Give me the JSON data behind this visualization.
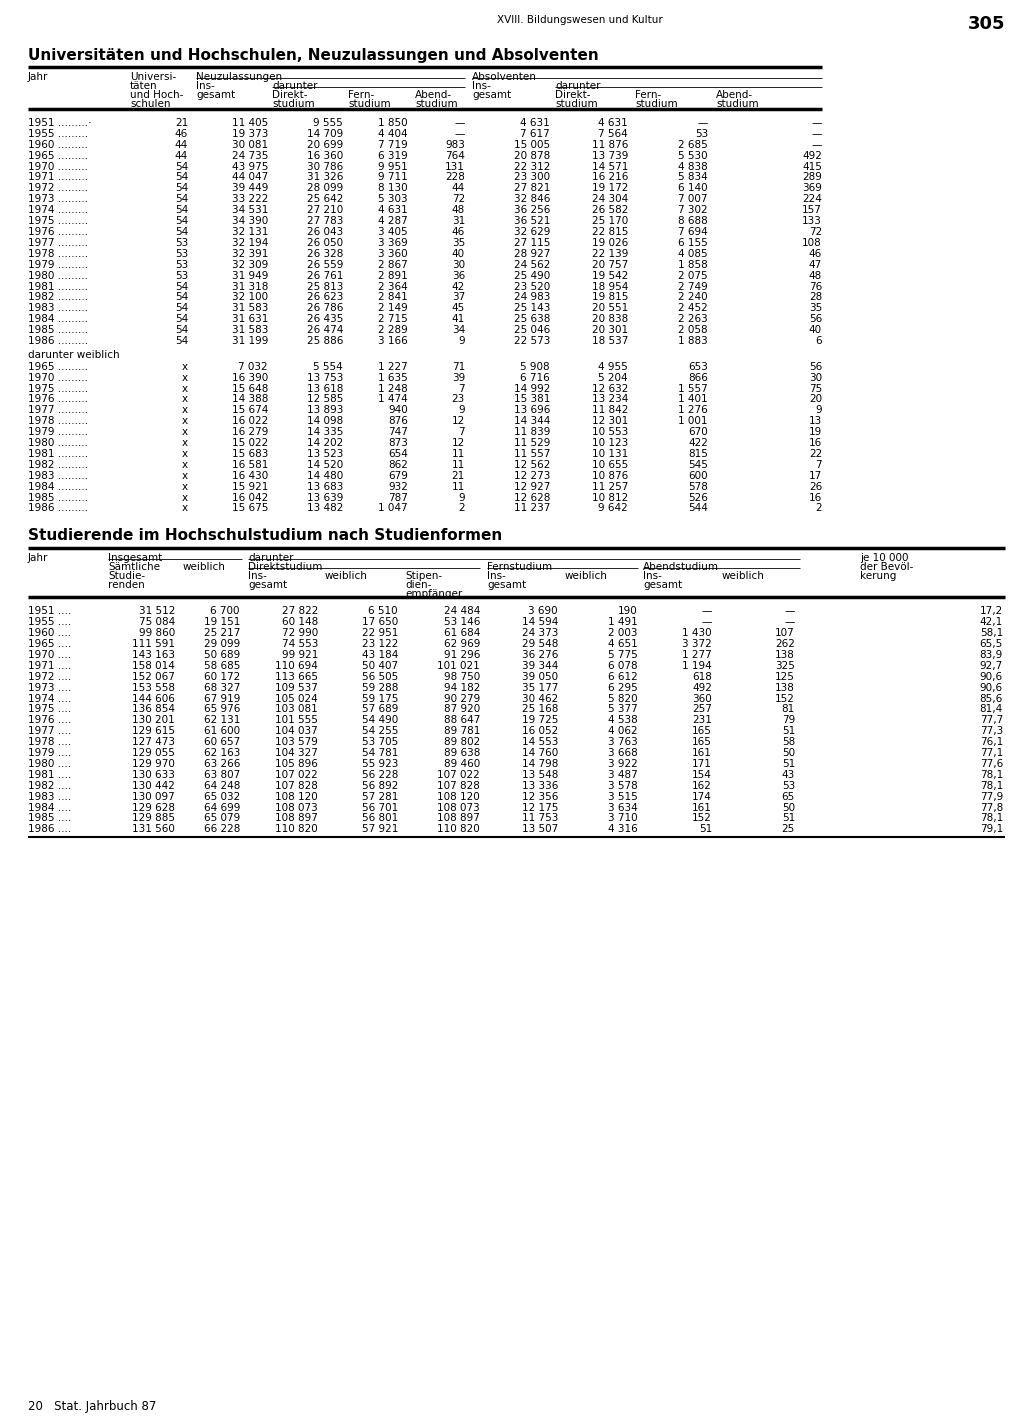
{
  "page_header": "XVIII. Bildungswesen und Kultur",
  "page_number": "305",
  "footer": "20   Stat. Jahrbuch 87",
  "table1_title": "Universitäten und Hochschulen, Neuzulassungen und Absolventen",
  "table1_data": [
    [
      "1951 .........·",
      "21",
      "11 405",
      "9 555",
      "1 850",
      "—",
      "4 631",
      "4 631",
      "—",
      "—"
    ],
    [
      "1955 .........",
      "46",
      "19 373",
      "14 709",
      "4 404",
      "—",
      "7 617",
      "7 564",
      "53",
      "—"
    ],
    [
      "1960 .........",
      "44",
      "30 081",
      "20 699",
      "7 719",
      "983",
      "15 005",
      "11 876",
      "2 685",
      "—"
    ],
    [
      "1965 .........",
      "44",
      "24 735",
      "16 360",
      "6 319",
      "764",
      "20 878",
      "13 739",
      "5 530",
      "492"
    ],
    [
      "1970 .........",
      "54",
      "43 975",
      "30 786",
      "9 951",
      "131",
      "22 312",
      "14 571",
      "4 838",
      "415"
    ],
    [
      "1971 .........",
      "54",
      "44 047",
      "31 326",
      "9 711",
      "228",
      "23 300",
      "16 216",
      "5 834",
      "289"
    ],
    [
      "1972 .........",
      "54",
      "39 449",
      "28 099",
      "8 130",
      "44",
      "27 821",
      "19 172",
      "6 140",
      "369"
    ],
    [
      "1973 .........",
      "54",
      "33 222",
      "25 642",
      "5 303",
      "72",
      "32 846",
      "24 304",
      "7 007",
      "224"
    ],
    [
      "1974 .........",
      "54",
      "34 531",
      "27 210",
      "4 631",
      "48",
      "36 256",
      "26 582",
      "7 302",
      "157"
    ],
    [
      "1975 .........",
      "54",
      "34 390",
      "27 783",
      "4 287",
      "31",
      "36 521",
      "25 170",
      "8 688",
      "133"
    ],
    [
      "1976 .........",
      "54",
      "32 131",
      "26 043",
      "3 405",
      "46",
      "32 629",
      "22 815",
      "7 694",
      "72"
    ],
    [
      "1977 .........",
      "53",
      "32 194",
      "26 050",
      "3 369",
      "35",
      "27 115",
      "19 026",
      "6 155",
      "108"
    ],
    [
      "1978 .........",
      "53",
      "32 391",
      "26 328",
      "3 360",
      "40",
      "28 927",
      "22 139",
      "4 085",
      "46"
    ],
    [
      "1979 .........",
      "53",
      "32 309",
      "26 559",
      "2 867",
      "30",
      "24 562",
      "20 757",
      "1 858",
      "47"
    ],
    [
      "1980 .........",
      "53",
      "31 949",
      "26 761",
      "2 891",
      "36",
      "25 490",
      "19 542",
      "2 075",
      "48"
    ],
    [
      "1981 .........",
      "54",
      "31 318",
      "25 813",
      "2 364",
      "42",
      "23 520",
      "18 954",
      "2 749",
      "76"
    ],
    [
      "1982 .........",
      "54",
      "32 100",
      "26 623",
      "2 841",
      "37",
      "24 983",
      "19 815",
      "2 240",
      "28"
    ],
    [
      "1983 .........",
      "54",
      "31 583",
      "26 786",
      "2 149",
      "45",
      "25 143",
      "20 551",
      "2 452",
      "35"
    ],
    [
      "1984 .........",
      "54",
      "31 631",
      "26 435",
      "2 715",
      "41",
      "25 638",
      "20 838",
      "2 263",
      "56"
    ],
    [
      "1985 .........",
      "54",
      "31 583",
      "26 474",
      "2 289",
      "34",
      "25 046",
      "20 301",
      "2 058",
      "40"
    ],
    [
      "1986 .........",
      "54",
      "31 199",
      "25 886",
      "3 166",
      "9",
      "22 573",
      "18 537",
      "1 883",
      "6"
    ]
  ],
  "table1_section2_label": "darunter weiblich",
  "table1_data2": [
    [
      "1965 .........",
      "x",
      "7 032",
      "5 554",
      "1 227",
      "71",
      "5 908",
      "4 955",
      "653",
      "56"
    ],
    [
      "1970 .........",
      "x",
      "16 390",
      "13 753",
      "1 635",
      "39",
      "6 716",
      "5 204",
      "866",
      "30"
    ],
    [
      "1975 .........",
      "x",
      "15 648",
      "13 618",
      "1 248",
      "7",
      "14 992",
      "12 632",
      "1 557",
      "75"
    ],
    [
      "1976 .........",
      "x",
      "14 388",
      "12 585",
      "1 474",
      "23",
      "15 381",
      "13 234",
      "1 401",
      "20"
    ],
    [
      "1977 .........",
      "x",
      "15 674",
      "13 893",
      "940",
      "9",
      "13 696",
      "11 842",
      "1 276",
      "9"
    ],
    [
      "1978 .........",
      "x",
      "16 022",
      "14 098",
      "876",
      "12",
      "14 344",
      "12 301",
      "1 001",
      "13"
    ],
    [
      "1979 .........",
      "x",
      "16 279",
      "14 335",
      "747",
      "7",
      "11 839",
      "10 553",
      "670",
      "19"
    ],
    [
      "1980 .........",
      "x",
      "15 022",
      "14 202",
      "873",
      "12",
      "11 529",
      "10 123",
      "422",
      "16"
    ],
    [
      "1981 .........",
      "x",
      "15 683",
      "13 523",
      "654",
      "11",
      "11 557",
      "10 131",
      "815",
      "22"
    ],
    [
      "1982 .........",
      "x",
      "16 581",
      "14 520",
      "862",
      "11",
      "12 562",
      "10 655",
      "545",
      "7"
    ],
    [
      "1983 .........",
      "x",
      "16 430",
      "14 480",
      "679",
      "21",
      "12 273",
      "10 876",
      "600",
      "17"
    ],
    [
      "1984 .........",
      "x",
      "15 921",
      "13 683",
      "932",
      "11",
      "12 927",
      "11 257",
      "578",
      "26"
    ],
    [
      "1985 .........",
      "x",
      "16 042",
      "13 639",
      "787",
      "9",
      "12 628",
      "10 812",
      "526",
      "16"
    ],
    [
      "1986 .........",
      "x",
      "15 675",
      "13 482",
      "1 047",
      "2",
      "11 237",
      "9 642",
      "544",
      "2"
    ]
  ],
  "table2_title": "Studierende im Hochschulstudium nach Studienformen",
  "table2_data": [
    [
      "1951 ....",
      "31 512",
      "6 700",
      "27 822",
      "6 510",
      "24 484",
      "3 690",
      "190",
      "—",
      "—",
      "17,2"
    ],
    [
      "1955 ....",
      "75 084",
      "19 151",
      "60 148",
      "17 650",
      "53 146",
      "14 594",
      "1 491",
      "—",
      "—",
      "42,1"
    ],
    [
      "1960 ....",
      "99 860",
      "25 217",
      "72 990",
      "22 951",
      "61 684",
      "24 373",
      "2 003",
      "1 430",
      "107",
      "58,1"
    ],
    [
      "1965 ....",
      "111 591",
      "29 099",
      "74 553",
      "23 122",
      "62 969",
      "29 548",
      "4 651",
      "3 372",
      "262",
      "65,5"
    ],
    [
      "1970 ....",
      "143 163",
      "50 689",
      "99 921",
      "43 184",
      "91 296",
      "36 276",
      "5 775",
      "1 277",
      "138",
      "83,9"
    ],
    [
      "1971 ....",
      "158 014",
      "58 685",
      "110 694",
      "50 407",
      "101 021",
      "39 344",
      "6 078",
      "1 194",
      "325",
      "92,7"
    ],
    [
      "1972 ....",
      "152 067",
      "60 172",
      "113 665",
      "56 505",
      "98 750",
      "39 050",
      "6 612",
      "618",
      "125",
      "90,6"
    ],
    [
      "1973 ....",
      "153 558",
      "68 327",
      "109 537",
      "59 288",
      "94 182",
      "35 177",
      "6 295",
      "492",
      "138",
      "90,6"
    ],
    [
      "1974 ....",
      "144 606",
      "67 919",
      "105 024",
      "59 175",
      "90 279",
      "30 462",
      "5 820",
      "360",
      "152",
      "85,6"
    ],
    [
      "1975 ....",
      "136 854",
      "65 976",
      "103 081",
      "57 689",
      "87 920",
      "25 168",
      "5 377",
      "257",
      "81",
      "81,4"
    ],
    [
      "1976 ....",
      "130 201",
      "62 131",
      "101 555",
      "54 490",
      "88 647",
      "19 725",
      "4 538",
      "231",
      "79",
      "77,7"
    ],
    [
      "1977 ....",
      "129 615",
      "61 600",
      "104 037",
      "54 255",
      "89 781",
      "16 052",
      "4 062",
      "165",
      "51",
      "77,3"
    ],
    [
      "1978 ....",
      "127 473",
      "60 657",
      "103 579",
      "53 705",
      "89 802",
      "14 553",
      "3 763",
      "165",
      "58",
      "76,1"
    ],
    [
      "1979 ....",
      "129 055",
      "62 163",
      "104 327",
      "54 781",
      "89 638",
      "14 760",
      "3 668",
      "161",
      "50",
      "77,1"
    ],
    [
      "1980 ....",
      "129 970",
      "63 266",
      "105 896",
      "55 923",
      "89 460",
      "14 798",
      "3 922",
      "171",
      "51",
      "77,6"
    ],
    [
      "1981 ....",
      "130 633",
      "63 807",
      "107 022",
      "56 228",
      "107 022",
      "13 548",
      "3 487",
      "154",
      "43",
      "78,1"
    ],
    [
      "1982 ....",
      "130 442",
      "64 248",
      "107 828",
      "56 892",
      "107 828",
      "13 336",
      "3 578",
      "162",
      "53",
      "78,1"
    ],
    [
      "1983 ....",
      "130 097",
      "65 032",
      "108 120",
      "57 281",
      "108 120",
      "12 356",
      "3 515",
      "174",
      "65",
      "77,9"
    ],
    [
      "1984 ....",
      "129 628",
      "64 699",
      "108 073",
      "56 701",
      "108 073",
      "12 175",
      "3 634",
      "161",
      "50",
      "77,8"
    ],
    [
      "1985 ....",
      "129 885",
      "65 079",
      "108 897",
      "56 801",
      "108 897",
      "11 753",
      "3 710",
      "152",
      "51",
      "78,1"
    ],
    [
      "1986 ....",
      "131 560",
      "66 228",
      "110 820",
      "57 921",
      "110 820",
      "13 507",
      "4 316",
      "51",
      "25",
      "79,1"
    ]
  ],
  "bg_color": "#ffffff"
}
